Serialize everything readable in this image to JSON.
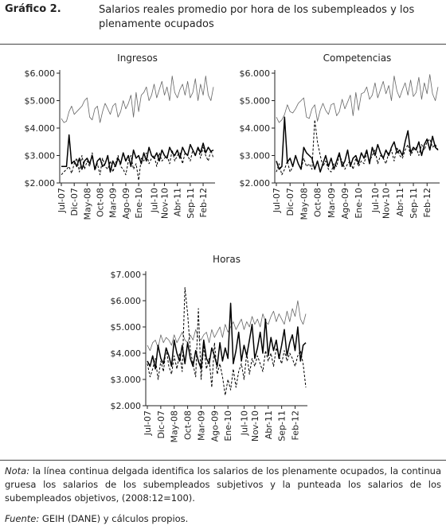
{
  "header": {
    "label": "Gráfico 2.",
    "title": "Salarios reales promedio por hora de los subempleados y los plenamente ocupados"
  },
  "notes": {
    "nota_label": "Nota:",
    "nota_text": "la línea continua delgada identifica los salarios de los plenamente ocupados, la continua gruesa los salarios de los subempleados subjetivos y la punteada los salarios de los subempleados objetivos, (2008:12=100).",
    "source_label": "Fuente:",
    "source_text": "GEIH (DANE) y cálculos propios."
  },
  "chart_data": [
    {
      "type": "line",
      "title": "Ingresos",
      "categories": [
        "Jul-07",
        null,
        null,
        null,
        null,
        "Dic-07",
        null,
        null,
        null,
        null,
        "May-08",
        null,
        null,
        null,
        null,
        "Oct-08",
        null,
        null,
        null,
        null,
        "Mar-09",
        null,
        null,
        null,
        null,
        "Ago-09",
        null,
        null,
        null,
        null,
        "Ene-10",
        null,
        null,
        null,
        null,
        null,
        "Jul-10",
        null,
        null,
        null,
        "Nov-10",
        null,
        null,
        null,
        null,
        "Abr-11",
        null,
        null,
        null,
        null,
        "Sep-11",
        null,
        null,
        null,
        null,
        "Feb-12",
        null,
        null,
        null,
        null
      ],
      "ylim": [
        2000,
        6000
      ],
      "yticks": [
        {
          "value": 2000,
          "label": "$2.000"
        },
        {
          "value": 3000,
          "label": "$3.000"
        },
        {
          "value": 4000,
          "label": "$4.000"
        },
        {
          "value": 5000,
          "label": "$5.000"
        },
        {
          "value": 6000,
          "label": "$6.000"
        }
      ],
      "series": [
        {
          "color": "#666666",
          "style": "solid",
          "line_width": 0.8,
          "values": [
            4350,
            4200,
            4250,
            4600,
            4800,
            4500,
            4600,
            4700,
            4800,
            5000,
            5100,
            4400,
            4300,
            4700,
            4800,
            4200,
            4600,
            4900,
            4700,
            4500,
            4800,
            4900,
            4400,
            4600,
            5000,
            4700,
            4900,
            5200,
            4400,
            5300,
            4600,
            5200,
            5300,
            5500,
            5000,
            5200,
            5600,
            5100,
            5400,
            5700,
            5200,
            5500,
            5000,
            5900,
            5300,
            5100,
            5400,
            5600,
            5200,
            5700,
            5100,
            5300,
            5800,
            5000,
            5600,
            5200,
            5900,
            5200,
            5000,
            5500
          ]
        },
        {
          "color": "#000000",
          "style": "solid",
          "line_width": 1.5,
          "values": [
            2600,
            2600,
            2600,
            3750,
            2700,
            2800,
            2600,
            2900,
            2500,
            2800,
            2900,
            2700,
            3000,
            2500,
            2800,
            2900,
            2600,
            2700,
            3000,
            2400,
            2800,
            2600,
            2900,
            2700,
            3100,
            2800,
            3000,
            2600,
            3200,
            2900,
            3000,
            2700,
            3100,
            2800,
            3300,
            3000,
            2900,
            3100,
            2800,
            3200,
            3000,
            2900,
            3300,
            3100,
            3000,
            3200,
            2900,
            3300,
            3100,
            3000,
            3400,
            3200,
            3000,
            3300,
            3100,
            3450,
            3100,
            3300,
            3150,
            3200
          ]
        },
        {
          "color": "#000000",
          "style": "dashed",
          "line_width": 1,
          "values": [
            2300,
            2400,
            2500,
            2600,
            2350,
            2700,
            2900,
            2400,
            3000,
            2500,
            2800,
            2600,
            3100,
            2450,
            2700,
            2300,
            2900,
            2600,
            2500,
            2800,
            2400,
            2700,
            3000,
            2600,
            2500,
            2300,
            2800,
            3000,
            2500,
            2700,
            2100,
            2900,
            2800,
            3100,
            2700,
            2900,
            3000,
            2600,
            3100,
            2800,
            2900,
            3000,
            2700,
            3200,
            2800,
            3000,
            3100,
            2700,
            3100,
            3000,
            2800,
            3200,
            3000,
            3300,
            2900,
            3300,
            3000,
            2800,
            3200,
            2900
          ]
        }
      ]
    },
    {
      "type": "line",
      "title": "Competencias",
      "categories": [
        "Jul-07",
        null,
        null,
        null,
        null,
        "Dic-07",
        null,
        null,
        null,
        null,
        "May-08",
        null,
        null,
        null,
        null,
        "Oct-08",
        null,
        null,
        null,
        null,
        "Mar-09",
        null,
        null,
        null,
        null,
        "Ago-09",
        null,
        null,
        null,
        null,
        "Ene-10",
        null,
        null,
        null,
        null,
        null,
        "Jul-10",
        null,
        null,
        null,
        "Nov-10",
        null,
        null,
        null,
        null,
        "Abr-11",
        null,
        null,
        null,
        null,
        "Sep-11",
        null,
        null,
        null,
        null,
        "Feb-12",
        null,
        null,
        null,
        null
      ],
      "ylim": [
        2000,
        6000
      ],
      "yticks": [
        {
          "value": 2000,
          "label": "$2.000"
        },
        {
          "value": 3000,
          "label": "$3.000"
        },
        {
          "value": 4000,
          "label": "$4.000"
        },
        {
          "value": 5000,
          "label": "$5.000"
        },
        {
          "value": 6000,
          "label": "$6.000"
        }
      ],
      "series": [
        {
          "color": "#666666",
          "style": "solid",
          "line_width": 0.8,
          "values": [
            4400,
            4200,
            4300,
            4500,
            4850,
            4600,
            4550,
            4700,
            4900,
            5000,
            5100,
            4400,
            4350,
            4700,
            4850,
            4250,
            4650,
            4900,
            4650,
            4500,
            4850,
            4900,
            4450,
            4600,
            5050,
            4700,
            4950,
            5200,
            4450,
            5300,
            4650,
            5250,
            5300,
            5500,
            5050,
            5200,
            5650,
            5100,
            5400,
            5700,
            5250,
            5550,
            5000,
            5900,
            5350,
            5100,
            5400,
            5650,
            5200,
            5750,
            5150,
            5300,
            5850,
            5050,
            5650,
            5250,
            5950,
            5250,
            5000,
            5500
          ]
        },
        {
          "color": "#000000",
          "style": "solid",
          "line_width": 1.5,
          "values": [
            2800,
            2500,
            2600,
            4400,
            2750,
            2900,
            2600,
            3000,
            2700,
            2500,
            3300,
            3100,
            3000,
            2900,
            2500,
            2800,
            2400,
            2700,
            3000,
            2600,
            2900,
            2500,
            2800,
            3100,
            2600,
            2800,
            3200,
            2600,
            2900,
            3000,
            2700,
            3100,
            2900,
            3200,
            2700,
            3300,
            3000,
            3400,
            3100,
            2900,
            3200,
            3000,
            3300,
            3500,
            3100,
            3200,
            3000,
            3500,
            3900,
            3100,
            3300,
            3200,
            3500,
            3000,
            3400,
            3600,
            3200,
            3700,
            3300,
            3200
          ]
        },
        {
          "color": "#000000",
          "style": "dashed",
          "line_width": 1,
          "values": [
            2400,
            2700,
            2300,
            2500,
            2800,
            2400,
            2600,
            3000,
            2700,
            2500,
            2900,
            2600,
            2700,
            2500,
            4300,
            3500,
            3000,
            2600,
            2800,
            2500,
            2400,
            2700,
            2600,
            3000,
            2800,
            2500,
            2700,
            2800,
            2500,
            2900,
            2600,
            2800,
            2700,
            3100,
            2800,
            3000,
            3200,
            2700,
            3000,
            2900,
            2700,
            3100,
            3200,
            2800,
            3300,
            3000,
            2900,
            3200,
            3400,
            3000,
            3200,
            3300,
            3000,
            3400,
            3200,
            3500,
            3600,
            3300,
            3400,
            3200
          ]
        }
      ]
    },
    {
      "type": "line",
      "title": "Horas",
      "categories": [
        "Jul-07",
        null,
        null,
        null,
        null,
        "Dic-07",
        null,
        null,
        null,
        null,
        "May-08",
        null,
        null,
        null,
        null,
        "Oct-08",
        null,
        null,
        null,
        null,
        "Mar-09",
        null,
        null,
        null,
        null,
        "Ago-09",
        null,
        null,
        null,
        null,
        "Ene-10",
        null,
        null,
        null,
        null,
        null,
        "Jul-10",
        null,
        null,
        null,
        "Nov-10",
        null,
        null,
        null,
        null,
        "Abr-11",
        null,
        null,
        null,
        null,
        "Sep-11",
        null,
        null,
        null,
        null,
        "Feb-12",
        null,
        null,
        null,
        null
      ],
      "ylim": [
        2000,
        7000
      ],
      "yticks": [
        {
          "value": 2000,
          "label": "$2.000"
        },
        {
          "value": 3000,
          "label": "$3.000"
        },
        {
          "value": 4000,
          "label": "$4.000"
        },
        {
          "value": 5000,
          "label": "$5.000"
        },
        {
          "value": 6000,
          "label": "$6.000"
        },
        {
          "value": 7000,
          "label": "$7.000"
        }
      ],
      "series": [
        {
          "color": "#666666",
          "style": "solid",
          "line_width": 0.8,
          "values": [
            4300,
            4100,
            4400,
            4500,
            4200,
            4700,
            4400,
            4600,
            4500,
            4300,
            4700,
            4400,
            4600,
            4800,
            4500,
            4400,
            4700,
            4500,
            4900,
            4600,
            4500,
            4700,
            4800,
            4400,
            4900,
            4600,
            4800,
            5000,
            4600,
            5100,
            4800,
            5000,
            5200,
            4900,
            5100,
            5300,
            4900,
            5200,
            5000,
            5400,
            5100,
            5300,
            5000,
            5500,
            5200,
            5100,
            5400,
            5600,
            5200,
            5500,
            5300,
            5100,
            5600,
            5200,
            5700,
            5400,
            6000,
            5300,
            5100,
            5500
          ]
        },
        {
          "color": "#000000",
          "style": "solid",
          "line_width": 1.5,
          "values": [
            3700,
            3500,
            3900,
            3400,
            4300,
            3800,
            3600,
            4200,
            3900,
            3500,
            4500,
            4000,
            3700,
            4300,
            3600,
            4400,
            3800,
            3500,
            4100,
            3700,
            3400,
            4500,
            3800,
            3600,
            4200,
            3900,
            3500,
            4400,
            3700,
            4200,
            3800,
            5900,
            3600,
            4100,
            4800,
            3700,
            4300,
            3900,
            4500,
            5100,
            3800,
            4200,
            4800,
            4000,
            5300,
            3900,
            4600,
            4100,
            4500,
            3800,
            4300,
            4900,
            3900,
            4400,
            4700,
            4100,
            5000,
            3700,
            4300,
            4400
          ]
        },
        {
          "color": "#000000",
          "style": "dashed",
          "line_width": 1,
          "values": [
            3600,
            3100,
            3400,
            3800,
            3000,
            3700,
            3300,
            4200,
            3500,
            3200,
            3900,
            3400,
            4000,
            3300,
            6500,
            5500,
            4100,
            3600,
            3100,
            5700,
            3000,
            4300,
            3400,
            3800,
            2700,
            4400,
            3200,
            3600,
            3100,
            2400,
            3000,
            2600,
            3400,
            2700,
            3300,
            3600,
            3000,
            4000,
            3200,
            3800,
            3500,
            3900,
            3600,
            3300,
            4100,
            3700,
            4000,
            3500,
            4200,
            3900,
            3600,
            4100,
            3700,
            4000,
            3800,
            3500,
            3900,
            4100,
            3600,
            2700
          ]
        }
      ]
    }
  ]
}
